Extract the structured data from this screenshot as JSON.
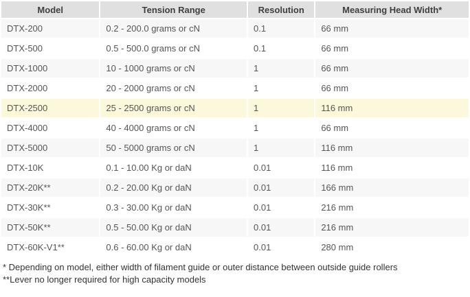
{
  "table": {
    "headers": {
      "model": "Model",
      "tension_range": "Tension Range",
      "resolution": "Resolution",
      "head_width": "Measuring Head Width*"
    },
    "rows": [
      {
        "model": "DTX-200",
        "tension_range": "0.2 - 200.0 grams or cN",
        "resolution": "0.1",
        "head_width": "66 mm",
        "highlighted": false
      },
      {
        "model": "DTX-500",
        "tension_range": "0.5 - 500.0 grams or cN",
        "resolution": "0.1",
        "head_width": "66 mm",
        "highlighted": false
      },
      {
        "model": "DTX-1000",
        "tension_range": "10 - 1000 grams or cN",
        "resolution": "1",
        "head_width": "66 mm",
        "highlighted": false
      },
      {
        "model": "DTX-2000",
        "tension_range": "20 - 2000 grams or cN",
        "resolution": "1",
        "head_width": "66 mm",
        "highlighted": false
      },
      {
        "model": "DTX-2500",
        "tension_range": "25 - 2500 grams or cN",
        "resolution": "1",
        "head_width": "116 mm",
        "highlighted": true
      },
      {
        "model": "DTX-4000",
        "tension_range": "40 - 4000 grams or cN",
        "resolution": "1",
        "head_width": "66 mm",
        "highlighted": false
      },
      {
        "model": "DTX-5000",
        "tension_range": "50 - 5000 grams or cN",
        "resolution": "1",
        "head_width": "116 mm",
        "highlighted": false
      },
      {
        "model": "DTX-10K",
        "tension_range": "0.1 - 10.00 Kg or daN",
        "resolution": "0.01",
        "head_width": "116 mm",
        "highlighted": false
      },
      {
        "model": "DTX-20K**",
        "tension_range": "0.2 - 20.00 Kg or daN",
        "resolution": "0.01",
        "head_width": "166 mm",
        "highlighted": false
      },
      {
        "model": "DTX-30K**",
        "tension_range": "0.3 - 30.00 Kg or daN",
        "resolution": "0.01",
        "head_width": "216 mm",
        "highlighted": false
      },
      {
        "model": "DTX-50K**",
        "tension_range": "0.5 - 50.00 Kg or daN",
        "resolution": "0.01",
        "head_width": "216 mm",
        "highlighted": false
      },
      {
        "model": "DTX-60K-V1**",
        "tension_range": "0.6 - 60.00 Kg or daN",
        "resolution": "0.01",
        "head_width": "280 mm",
        "highlighted": false
      }
    ]
  },
  "footnotes": [
    "* Depending on model, either width of filament guide or outer distance between outside guide rollers",
    "**Lever no longer required for high capacity models"
  ],
  "colors": {
    "header_bg": "#e0e0e0",
    "row_bg": "#ffffff",
    "row_alt_bg": "#f7f7f7",
    "highlight_bg": "#fbf8db",
    "body_text": "#555555",
    "header_text": "#3f3f3f"
  }
}
